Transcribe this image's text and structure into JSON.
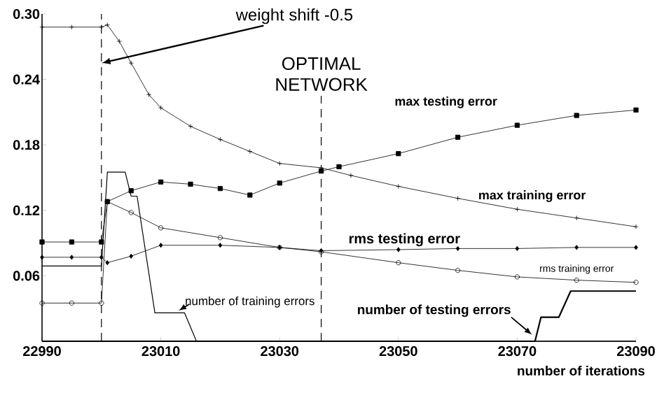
{
  "chart_data": {
    "type": "line",
    "xlabel": "number of iterations",
    "xlim": [
      22990,
      23090
    ],
    "xticks": [
      22990,
      23010,
      23030,
      23050,
      23070,
      23090
    ],
    "ylim": [
      0,
      0.3
    ],
    "yticks": [
      0.06,
      0.12,
      0.18,
      0.24,
      {
        "value": 0.3,
        "label": "0.30"
      }
    ],
    "series": [
      {
        "name": "max training error",
        "color": "#000000",
        "marker": "cross",
        "x": [
          22990,
          22995,
          23000,
          23001,
          23003,
          23005,
          23008,
          23010,
          23015,
          23020,
          23025,
          23030,
          23037,
          23042,
          23050,
          23060,
          23070,
          23080,
          23090
        ],
        "values": [
          0.288,
          0.288,
          0.288,
          0.29,
          0.275,
          0.255,
          0.226,
          0.214,
          0.197,
          0.185,
          0.174,
          0.163,
          0.159,
          0.152,
          0.142,
          0.131,
          0.121,
          0.113,
          0.105
        ]
      },
      {
        "name": "max testing error",
        "color": "#000000",
        "marker": "square",
        "x": [
          22990,
          22995,
          23000,
          23001,
          23005,
          23010,
          23015,
          23020,
          23025,
          23030,
          23037,
          23040,
          23050,
          23060,
          23070,
          23080,
          23090
        ],
        "values": [
          0.091,
          0.091,
          0.091,
          0.128,
          0.138,
          0.146,
          0.144,
          0.14,
          0.134,
          0.145,
          0.156,
          0.16,
          0.172,
          0.187,
          0.198,
          0.207,
          0.212
        ]
      },
      {
        "name": "rms testing error",
        "color": "#000000",
        "marker": "diamond",
        "x": [
          22990,
          22995,
          23000,
          23001,
          23005,
          23010,
          23020,
          23030,
          23037,
          23050,
          23060,
          23070,
          23080,
          23090
        ],
        "values": [
          0.077,
          0.077,
          0.077,
          0.072,
          0.078,
          0.088,
          0.088,
          0.086,
          0.083,
          0.084,
          0.085,
          0.085,
          0.086,
          0.086
        ]
      },
      {
        "name": "rms training error",
        "color": "#000000",
        "marker": "circle",
        "x": [
          22990,
          22995,
          23000,
          23001,
          23005,
          23010,
          23020,
          23030,
          23037,
          23050,
          23060,
          23070,
          23080,
          23090
        ],
        "values": [
          0.035,
          0.035,
          0.035,
          0.128,
          0.118,
          0.104,
          0.095,
          0.086,
          0.082,
          0.072,
          0.065,
          0.059,
          0.056,
          0.054
        ]
      },
      {
        "name": "number of training errors",
        "color": "#000000",
        "marker": "none",
        "line_style": "solid",
        "x": [
          22990,
          23000,
          23001,
          23004,
          23005,
          23006,
          23009,
          23014,
          23016,
          23090
        ],
        "values": [
          0.069,
          0.069,
          0.155,
          0.155,
          0.133,
          0.133,
          0.026,
          0.026,
          0,
          0
        ]
      },
      {
        "name": "number of testing errors",
        "color": "#000000",
        "marker": "none",
        "line_style": "solid",
        "x": [
          22990,
          23073,
          23074,
          23077,
          23079,
          23090
        ],
        "values": [
          0,
          0,
          0.022,
          0.022,
          0.046,
          0.046
        ]
      }
    ],
    "ref_lines": [
      {
        "axis": "x",
        "value": 23000,
        "line_style": "dashed"
      },
      {
        "axis": "x",
        "value": 23037,
        "label": "OPTIMAL NETWORK",
        "line_style": "dashed"
      }
    ],
    "annotations": [
      {
        "text": "weight shift -0.5",
        "x": 23000,
        "y": 0.255
      }
    ]
  }
}
